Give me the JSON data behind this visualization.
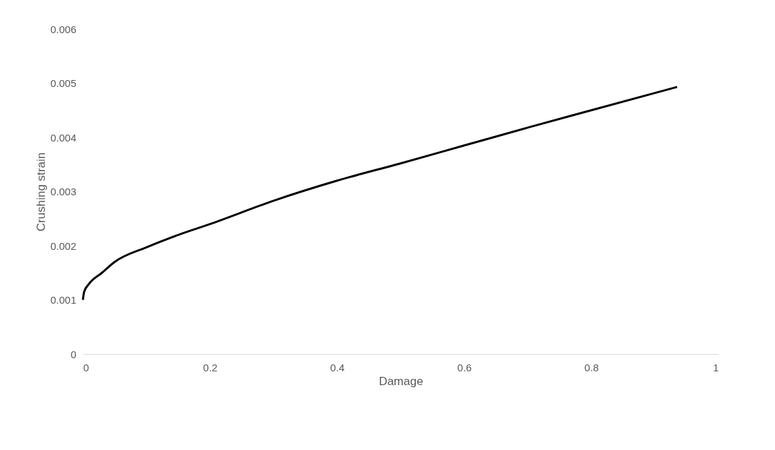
{
  "chart_data": {
    "type": "line",
    "xlabel": "Damage",
    "ylabel": "Crushing strain",
    "x": [
      0,
      0.002,
      0.01,
      0.03,
      0.05,
      0.1,
      0.15,
      0.2,
      0.3,
      0.4,
      0.5,
      0.6,
      0.7,
      0.8,
      0.935
    ],
    "series": [
      {
        "color": "#000000",
        "values": [
          0.001,
          0.00115,
          0.0013,
          0.0015,
          0.0017,
          0.00197,
          0.0022,
          0.0024,
          0.00283,
          0.0032,
          0.00352,
          0.00385,
          0.00418,
          0.0045,
          0.00493
        ]
      }
    ],
    "xlim": [
      0,
      1
    ],
    "xticks": [
      0,
      0.2,
      0.4,
      0.6,
      0.8,
      1
    ],
    "ylim": [
      0,
      0.006
    ],
    "yticks": [
      0,
      0.001,
      0.002,
      0.003,
      0.004,
      0.005,
      0.006
    ],
    "grid": false,
    "marker": "none",
    "line_style": "solid"
  }
}
